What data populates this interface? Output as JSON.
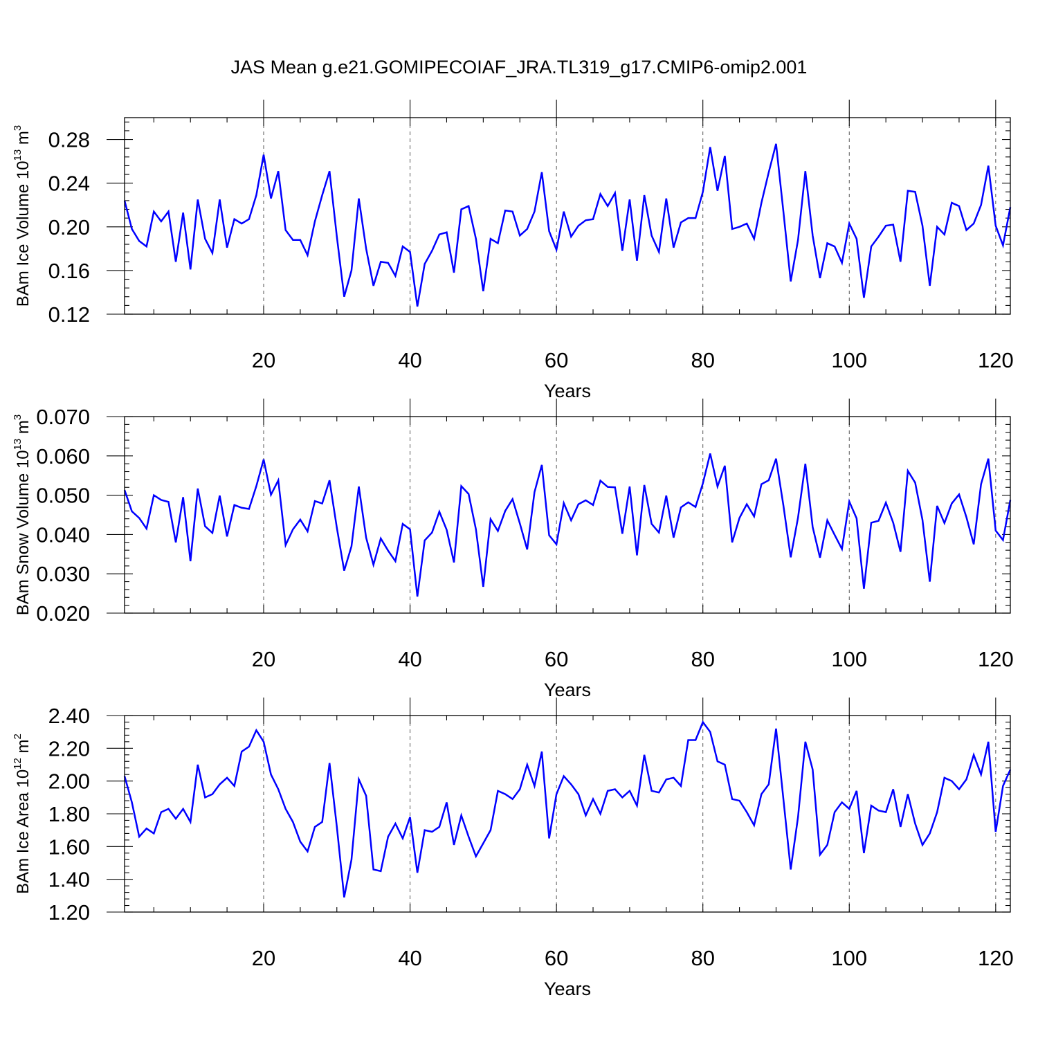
{
  "title": "JAS Mean g.e21.GOMIPECOIAF_JRA.TL319_g17.CMIP6-omip2.001",
  "colors": {
    "line": "#0000ff",
    "grid": "#555555",
    "frame": "#000000"
  },
  "chart_data": [
    {
      "type": "line",
      "ylabel": {
        "main": "BAm Ice Volume 10",
        "sup": "13",
        "unit": " m",
        "unit_sup": "3"
      },
      "xlabel": "Years",
      "xlim": [
        1,
        122
      ],
      "xticks": [
        20,
        40,
        60,
        80,
        100,
        120
      ],
      "ylim": [
        0.12,
        0.3
      ],
      "yticks": [
        0.12,
        0.16,
        0.2,
        0.24,
        0.28
      ],
      "ytick_labels": [
        "0.12",
        "0.16",
        "0.20",
        "0.24",
        "0.28"
      ],
      "series": [
        {
          "name": "BAm Ice Volume",
          "values": [
            0.224,
            0.198,
            0.187,
            0.182,
            0.214,
            0.205,
            0.214,
            0.168,
            0.213,
            0.161,
            0.225,
            0.189,
            0.176,
            0.225,
            0.181,
            0.207,
            0.203,
            0.207,
            0.229,
            0.266,
            0.226,
            0.251,
            0.197,
            0.188,
            0.188,
            0.174,
            0.205,
            0.229,
            0.251,
            0.191,
            0.136,
            0.16,
            0.226,
            0.18,
            0.146,
            0.168,
            0.167,
            0.155,
            0.182,
            0.177,
            0.127,
            0.166,
            0.178,
            0.193,
            0.195,
            0.158,
            0.216,
            0.219,
            0.189,
            0.141,
            0.189,
            0.185,
            0.215,
            0.214,
            0.192,
            0.198,
            0.214,
            0.25,
            0.196,
            0.179,
            0.214,
            0.191,
            0.201,
            0.206,
            0.207,
            0.23,
            0.219,
            0.231,
            0.178,
            0.225,
            0.169,
            0.229,
            0.192,
            0.177,
            0.226,
            0.181,
            0.204,
            0.208,
            0.208,
            0.232,
            0.273,
            0.233,
            0.265,
            0.198,
            0.2,
            0.203,
            0.189,
            0.222,
            0.25,
            0.276,
            0.214,
            0.15,
            0.188,
            0.251,
            0.192,
            0.153,
            0.185,
            0.182,
            0.167,
            0.203,
            0.189,
            0.135,
            0.182,
            0.191,
            0.201,
            0.202,
            0.168,
            0.233,
            0.232,
            0.201,
            0.146,
            0.2,
            0.193,
            0.222,
            0.219,
            0.197,
            0.203,
            0.22,
            0.256,
            0.201,
            0.183,
            0.218
          ]
        }
      ]
    },
    {
      "type": "line",
      "ylabel": {
        "main": "BAm Snow Volume 10",
        "sup": "13",
        "unit": " m",
        "unit_sup": "3"
      },
      "xlabel": "Years",
      "xlim": [
        1,
        122
      ],
      "xticks": [
        20,
        40,
        60,
        80,
        100,
        120
      ],
      "ylim": [
        0.02,
        0.07
      ],
      "yticks": [
        0.02,
        0.03,
        0.04,
        0.05,
        0.06,
        0.07
      ],
      "ytick_labels": [
        "0.020",
        "0.030",
        "0.040",
        "0.050",
        "0.060",
        "0.070"
      ],
      "series": [
        {
          "name": "BAm Snow Volume",
          "values": [
            0.0513,
            0.0459,
            0.0442,
            0.0415,
            0.05,
            0.0488,
            0.0483,
            0.038,
            0.0495,
            0.0332,
            0.0517,
            0.0421,
            0.0404,
            0.0499,
            0.0395,
            0.0475,
            0.0468,
            0.0465,
            0.0523,
            0.0591,
            0.0501,
            0.0538,
            0.0373,
            0.0413,
            0.0438,
            0.0408,
            0.0485,
            0.0479,
            0.0538,
            0.0417,
            0.0308,
            0.037,
            0.0522,
            0.0392,
            0.0323,
            0.039,
            0.0359,
            0.0332,
            0.0427,
            0.0413,
            0.0242,
            0.0385,
            0.0405,
            0.0458,
            0.0412,
            0.0329,
            0.0523,
            0.0503,
            0.0413,
            0.0267,
            0.0439,
            0.0409,
            0.046,
            0.049,
            0.0428,
            0.0362,
            0.0508,
            0.0577,
            0.0398,
            0.0375,
            0.048,
            0.0436,
            0.0477,
            0.0487,
            0.0475,
            0.0537,
            0.0521,
            0.052,
            0.0402,
            0.0522,
            0.0347,
            0.0526,
            0.0427,
            0.0405,
            0.0499,
            0.0392,
            0.0469,
            0.0482,
            0.047,
            0.053,
            0.0606,
            0.0522,
            0.0575,
            0.038,
            0.0442,
            0.0477,
            0.0446,
            0.0528,
            0.0538,
            0.0593,
            0.0474,
            0.0342,
            0.0443,
            0.058,
            0.0419,
            0.0341,
            0.0436,
            0.0399,
            0.0363,
            0.0484,
            0.0441,
            0.0262,
            0.043,
            0.0435,
            0.0481,
            0.043,
            0.0356,
            0.0562,
            0.0532,
            0.0437,
            0.028,
            0.0473,
            0.0429,
            0.0479,
            0.0502,
            0.0444,
            0.0375,
            0.0528,
            0.0593,
            0.041,
            0.0386,
            0.0488
          ]
        }
      ]
    },
    {
      "type": "line",
      "ylabel": {
        "main": "BAm Ice Area 10",
        "sup": "12",
        "unit": " m",
        "unit_sup": "2"
      },
      "xlabel": "Years",
      "xlim": [
        1,
        122
      ],
      "xticks": [
        20,
        40,
        60,
        80,
        100,
        120
      ],
      "ylim": [
        1.2,
        2.4
      ],
      "yticks": [
        1.2,
        1.4,
        1.6,
        1.8,
        2.0,
        2.2,
        2.4
      ],
      "ytick_labels": [
        "1.20",
        "1.40",
        "1.60",
        "1.80",
        "2.00",
        "2.20",
        "2.40"
      ],
      "series": [
        {
          "name": "BAm Ice Area",
          "values": [
            2.03,
            1.87,
            1.66,
            1.71,
            1.68,
            1.81,
            1.83,
            1.77,
            1.83,
            1.75,
            2.1,
            1.9,
            1.92,
            1.98,
            2.02,
            1.97,
            2.18,
            2.21,
            2.31,
            2.24,
            2.04,
            1.95,
            1.83,
            1.75,
            1.63,
            1.57,
            1.72,
            1.75,
            2.11,
            1.72,
            1.29,
            1.52,
            2.01,
            1.91,
            1.46,
            1.45,
            1.66,
            1.74,
            1.65,
            1.78,
            1.44,
            1.7,
            1.69,
            1.72,
            1.87,
            1.61,
            1.79,
            1.66,
            1.54,
            1.62,
            1.7,
            1.94,
            1.92,
            1.89,
            1.95,
            2.1,
            1.97,
            2.18,
            1.65,
            1.92,
            2.03,
            1.98,
            1.92,
            1.79,
            1.89,
            1.8,
            1.94,
            1.95,
            1.9,
            1.94,
            1.85,
            2.16,
            1.94,
            1.93,
            2.01,
            2.02,
            1.97,
            2.25,
            2.25,
            2.36,
            2.3,
            2.12,
            2.1,
            1.89,
            1.88,
            1.81,
            1.73,
            1.92,
            1.98,
            2.32,
            1.89,
            1.46,
            1.78,
            2.24,
            2.07,
            1.55,
            1.61,
            1.81,
            1.87,
            1.83,
            1.94,
            1.56,
            1.85,
            1.82,
            1.81,
            1.95,
            1.72,
            1.92,
            1.74,
            1.61,
            1.68,
            1.81,
            2.02,
            2.0,
            1.95,
            2.01,
            2.16,
            2.04,
            2.24,
            1.69,
            1.97,
            2.07
          ]
        }
      ]
    }
  ]
}
